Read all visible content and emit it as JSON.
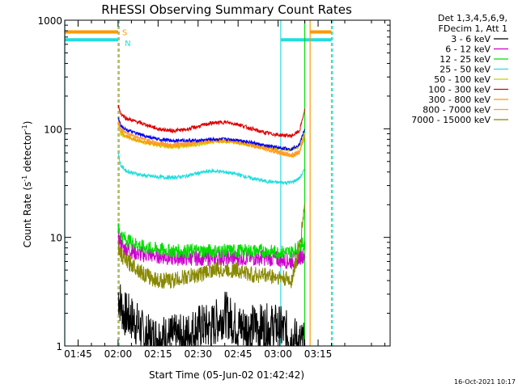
{
  "chart_data": {
    "type": "line",
    "title": "RHESSI Observing Summary Count Rates",
    "xlabel": "Start Time (05-Jun-02 01:42:42)",
    "ylabel_main": "Count Rate (s",
    "ylabel_sup1": "-1",
    "ylabel_mid": " detector",
    "ylabel_sup2": "-1",
    "ylabel_end": ")",
    "y_scale": "log",
    "ylim": [
      1,
      1000
    ],
    "xlim_minutes": [
      -20,
      102
    ],
    "x_tick_labels": [
      {
        "t": -15,
        "label": "01:45"
      },
      {
        "t": 0,
        "label": "02:00"
      },
      {
        "t": 15,
        "label": "02:15"
      },
      {
        "t": 30,
        "label": "02:30"
      },
      {
        "t": 45,
        "label": "02:45"
      },
      {
        "t": 60,
        "label": "03:00"
      },
      {
        "t": 75,
        "label": "03:15"
      }
    ],
    "y_tick_labels": [
      {
        "v": 1,
        "label": "1"
      },
      {
        "v": 10,
        "label": "10"
      },
      {
        "v": 100,
        "label": "100"
      },
      {
        "v": 1000,
        "label": "1000"
      }
    ],
    "legend_header": [
      "Det 1,3,4,5,6,9,",
      "FDecim 1, Att 1"
    ],
    "legend_position": "right",
    "timestamp": "16-Oct-2021 10:17",
    "series": [
      {
        "name": "3 - 6 keV",
        "color": "#000000",
        "x": [
          0,
          2,
          5,
          8,
          10,
          15,
          20,
          25,
          30,
          35,
          40,
          45,
          50,
          55,
          60,
          65,
          70
        ],
        "y": [
          3,
          2,
          1.8,
          1.5,
          1.2,
          1.2,
          1.2,
          1.2,
          1.5,
          1.5,
          2,
          1.5,
          1.5,
          1.5,
          1.5,
          1.2,
          1.0
        ]
      },
      {
        "name": "6 - 12 keV",
        "color": "#cc00cc",
        "x": [
          0,
          2,
          5,
          8,
          10,
          15,
          20,
          25,
          30,
          35,
          40,
          45,
          50,
          55,
          60,
          65,
          70
        ],
        "y": [
          10,
          8,
          7.5,
          7,
          7,
          6.8,
          6.5,
          6.5,
          6.5,
          6.5,
          6.5,
          6.5,
          6.5,
          6.5,
          6.3,
          6,
          7
        ]
      },
      {
        "name": "12 - 25 keV",
        "color": "#00dd00",
        "x": [
          0,
          2,
          5,
          8,
          10,
          15,
          20,
          25,
          30,
          35,
          40,
          45,
          50,
          55,
          60,
          65,
          70
        ],
        "y": [
          12,
          10,
          9,
          8.5,
          8,
          7.8,
          7.5,
          7.5,
          7.5,
          7.5,
          7.5,
          7.5,
          7.5,
          7.5,
          7.3,
          7.3,
          9
        ]
      },
      {
        "name": "25 - 50 keV",
        "color": "#22dddd",
        "x": [
          0,
          1,
          3,
          6,
          10,
          15,
          20,
          25,
          30,
          35,
          40,
          45,
          50,
          55,
          60,
          65,
          68,
          70
        ],
        "y": [
          60,
          46,
          41,
          39,
          37,
          36,
          35.5,
          36.5,
          39,
          41,
          40,
          38,
          35,
          33,
          32,
          32,
          35,
          42
        ]
      },
      {
        "name": "50 - 100 keV",
        "color": "#cccc00",
        "x": [
          0,
          1,
          3,
          6,
          10,
          15,
          20,
          25,
          30,
          35,
          40,
          45,
          50,
          55,
          60,
          65,
          68,
          70
        ],
        "y": [
          110,
          90,
          85,
          80,
          75,
          70,
          68,
          69,
          71,
          75,
          77,
          74,
          71,
          68,
          66,
          64,
          68,
          90
        ]
      },
      {
        "name": "100 - 300 keV",
        "color": "#dd0000",
        "x": [
          0,
          1,
          3,
          6,
          10,
          15,
          20,
          25,
          30,
          35,
          40,
          45,
          50,
          55,
          60,
          65,
          68,
          70
        ],
        "y": [
          165,
          138,
          125,
          118,
          110,
          100,
          96,
          98,
          105,
          113,
          115,
          110,
          100,
          92,
          88,
          86,
          95,
          150
        ]
      },
      {
        "name": "300 - 800 keV",
        "color": "#ff9900",
        "x": [
          0,
          1,
          3,
          6,
          10,
          15,
          20,
          25,
          30,
          35,
          40,
          45,
          50,
          55,
          60,
          65,
          68,
          70
        ],
        "y": [
          115,
          95,
          85,
          80,
          75,
          72,
          70,
          71,
          74,
          77,
          77,
          75,
          70,
          65,
          60,
          56,
          60,
          85
        ]
      },
      {
        "name": "800 - 7000 keV",
        "color": "#ff9933",
        "x": [
          0,
          1,
          3,
          6,
          10,
          15,
          20,
          25,
          30,
          35,
          40,
          45,
          50,
          55,
          60,
          65,
          68,
          70
        ],
        "y": [
          120,
          100,
          92,
          86,
          80,
          74,
          72,
          73,
          76,
          79,
          79,
          77,
          73,
          68,
          62,
          58,
          62,
          90
        ]
      },
      {
        "name": "7000 - 15000 keV",
        "color": "#888800",
        "x": [
          0,
          1,
          3,
          6,
          10,
          15,
          20,
          25,
          30,
          35,
          40,
          45,
          50,
          55,
          60,
          65,
          68,
          70
        ],
        "y": [
          8,
          7,
          6,
          5.5,
          4.5,
          4,
          4,
          4.3,
          4.5,
          5,
          5,
          5,
          4.5,
          4.5,
          4.3,
          4,
          8,
          20
        ]
      }
    ],
    "blue_series_color": "#0000ee",
    "blue_series": {
      "x": [
        0,
        1,
        3,
        6,
        10,
        15,
        20,
        25,
        30,
        35,
        40,
        45,
        50,
        55,
        60,
        65,
        68,
        70
      ],
      "y": [
        128,
        108,
        98,
        92,
        86,
        80,
        78,
        78,
        78,
        80,
        80,
        79,
        75,
        70,
        67,
        65,
        72,
        100
      ]
    },
    "vertical_markers": [
      {
        "t": -20,
        "color": "#22dddd",
        "style": "solid"
      },
      {
        "t": 0,
        "color": "#ff9900",
        "style": "dashed"
      },
      {
        "t": 0.4,
        "color": "#22dddd",
        "style": "dashed"
      },
      {
        "t": 61,
        "color": "#22dddd",
        "style": "solid"
      },
      {
        "t": 70,
        "color": "#00dd00",
        "style": "solid"
      },
      {
        "t": 72,
        "color": "#ff9900",
        "style": "solid"
      },
      {
        "t": 80,
        "color": "#ff9900",
        "style": "dashed"
      },
      {
        "t": 80.4,
        "color": "#22dddd",
        "style": "dashed"
      }
    ],
    "saa_bars": [
      {
        "t0": -20,
        "t1": 0,
        "level": 780,
        "color": "#ff9900"
      },
      {
        "t0": -20,
        "t1": 0,
        "level": 660,
        "color": "#22dddd"
      },
      {
        "t0": 61,
        "t1": 80,
        "level": 660,
        "color": "#22dddd"
      },
      {
        "t0": 72,
        "t1": 80,
        "level": 780,
        "color": "#ff9900"
      }
    ],
    "bar_labels": [
      {
        "text": "S",
        "t": 1.5,
        "level": 780,
        "color": "#ff9900"
      },
      {
        "text": "N",
        "t": 2.5,
        "level": 620,
        "color": "#22dddd"
      }
    ]
  }
}
